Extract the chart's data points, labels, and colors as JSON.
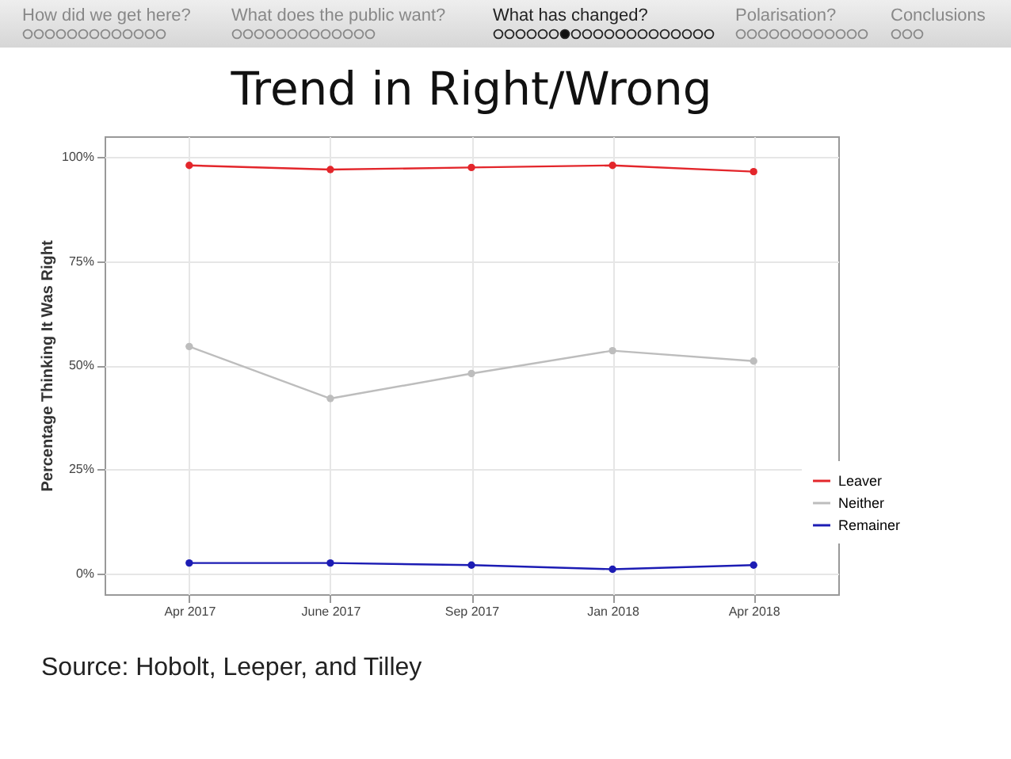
{
  "chart_data": {
    "type": "line",
    "title": "Trend in Right/Wrong",
    "ylabel": "Percentage Thinking It Was Right",
    "categories": [
      "Apr 2017",
      "June 2017",
      "Sep 2017",
      "Jan 2018",
      "Apr 2018"
    ],
    "series": [
      {
        "name": "Leaver",
        "color": "#e3262b",
        "values": [
          98,
          97,
          97.5,
          98,
          96.5
        ]
      },
      {
        "name": "Neither",
        "color": "#bdbdbd",
        "values": [
          54.5,
          42,
          48,
          53.5,
          51
        ]
      },
      {
        "name": "Remainer",
        "color": "#1c1cb4",
        "values": [
          2.5,
          2.5,
          2,
          1,
          2
        ]
      }
    ],
    "ylim": [
      -5,
      105
    ],
    "yticks": [
      {
        "value": 0,
        "label": "0%"
      },
      {
        "value": 25,
        "label": "25%"
      },
      {
        "value": 50,
        "label": "50%"
      },
      {
        "value": 75,
        "label": "75%"
      },
      {
        "value": 100,
        "label": "100%"
      }
    ],
    "grid": true,
    "legend": "bottom right",
    "marker": "circle",
    "line_style": "solid",
    "annotations": [
      "How did we get here?",
      "What does the public want?",
      "What has changed?",
      "Polarisation?",
      "Conclusions",
      "Source: Hobolt, Leeper, and Tilley"
    ]
  }
}
